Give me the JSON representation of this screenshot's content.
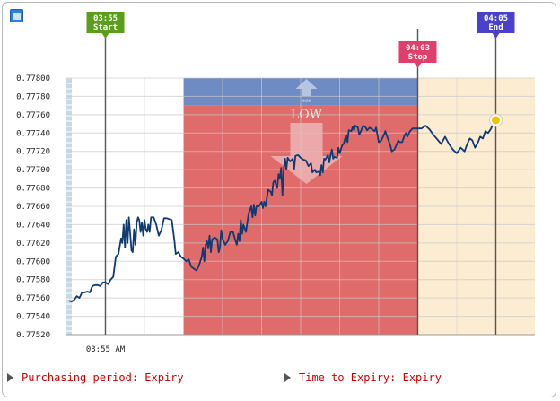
{
  "chart_data": {
    "type": "line",
    "title": "",
    "xlabel": "",
    "ylabel": "",
    "ylim": [
      0.7752,
      0.778
    ],
    "y_ticks": [
      "0.77800",
      "0.77780",
      "0.77760",
      "0.77740",
      "0.77720",
      "0.77700",
      "0.77680",
      "0.77660",
      "0.77640",
      "0.77620",
      "0.77600",
      "0.77580",
      "0.77560",
      "0.77540",
      "0.77520"
    ],
    "y_tick_values": [
      0.778,
      0.7778,
      0.7776,
      0.7774,
      0.7772,
      0.777,
      0.7768,
      0.7766,
      0.7764,
      0.7762,
      0.776,
      0.7758,
      0.7756,
      0.7754,
      0.7752
    ],
    "x_range_seconds": [
      0,
      720
    ],
    "x_tick_label": "03:55 AM",
    "x_tick_seconds": 60,
    "markers": [
      {
        "time": "03:55",
        "label": "Start",
        "seconds": 60,
        "color": "#5a9e1b"
      },
      {
        "time": "04:03",
        "label": "Stop",
        "seconds": 540,
        "color": "#e03f6b"
      },
      {
        "time": "04:05",
        "label": "End",
        "seconds": 660,
        "color": "#4a40cc"
      }
    ],
    "overlay": {
      "low_label": "LOW",
      "high_label": "HIGH",
      "start_seconds": 180,
      "stop_seconds": 540,
      "level": 0.7777
    },
    "series": [
      {
        "points": [
          [
            4,
            0.77557
          ],
          [
            8,
            0.77556
          ],
          [
            12,
            0.77558
          ],
          [
            16,
            0.77562
          ],
          [
            20,
            0.7756
          ],
          [
            24,
            0.77566
          ],
          [
            28,
            0.77566
          ],
          [
            32,
            0.77567
          ],
          [
            36,
            0.77566
          ],
          [
            40,
            0.77573
          ],
          [
            44,
            0.77574
          ],
          [
            48,
            0.77574
          ],
          [
            52,
            0.77573
          ],
          [
            56,
            0.77577
          ],
          [
            60,
            0.77577
          ],
          [
            64,
            0.77575
          ],
          [
            68,
            0.7758
          ],
          [
            72,
            0.77583
          ],
          [
            76,
            0.77605
          ],
          [
            80,
            0.77608
          ],
          [
            84,
            0.77625
          ],
          [
            86,
            0.7762
          ],
          [
            88,
            0.7764
          ],
          [
            90,
            0.77615
          ],
          [
            92,
            0.77645
          ],
          [
            94,
            0.7762
          ],
          [
            96,
            0.77648
          ],
          [
            98,
            0.7763
          ],
          [
            100,
            0.77612
          ],
          [
            102,
            0.7761
          ],
          [
            104,
            0.77635
          ],
          [
            106,
            0.77618
          ],
          [
            108,
            0.77642
          ],
          [
            110,
            0.77648
          ],
          [
            112,
            0.77645
          ],
          [
            114,
            0.77632
          ],
          [
            116,
            0.77642
          ],
          [
            118,
            0.77628
          ],
          [
            120,
            0.77645
          ],
          [
            122,
            0.77635
          ],
          [
            124,
            0.77632
          ],
          [
            126,
            0.7764
          ],
          [
            128,
            0.77632
          ],
          [
            130,
            0.77648
          ],
          [
            134,
            0.77648
          ],
          [
            138,
            0.7764
          ],
          [
            142,
            0.77628
          ],
          [
            146,
            0.77634
          ],
          [
            150,
            0.77647
          ],
          [
            154,
            0.77647
          ],
          [
            158,
            0.77646
          ],
          [
            162,
            0.77645
          ],
          [
            166,
            0.77622
          ],
          [
            168,
            0.77608
          ],
          [
            172,
            0.7761
          ],
          [
            176,
            0.77605
          ],
          [
            180,
            0.77603
          ],
          [
            184,
            0.776
          ],
          [
            188,
            0.77602
          ],
          [
            192,
            0.77594
          ],
          [
            196,
            0.77592
          ],
          [
            200,
            0.7759
          ],
          [
            204,
            0.77596
          ],
          [
            208,
            0.77605
          ],
          [
            210,
            0.77615
          ],
          [
            212,
            0.776
          ],
          [
            214,
            0.77618
          ],
          [
            216,
            0.77622
          ],
          [
            218,
            0.77614
          ],
          [
            220,
            0.77628
          ],
          [
            222,
            0.7761
          ],
          [
            224,
            0.77624
          ],
          [
            228,
            0.77626
          ],
          [
            232,
            0.77624
          ],
          [
            234,
            0.7761
          ],
          [
            236,
            0.77615
          ],
          [
            238,
            0.77634
          ],
          [
            240,
            0.77625
          ],
          [
            244,
            0.77618
          ],
          [
            248,
            0.77622
          ],
          [
            252,
            0.77632
          ],
          [
            256,
            0.77632
          ],
          [
            260,
            0.77622
          ],
          [
            262,
            0.77618
          ],
          [
            264,
            0.7763
          ],
          [
            266,
            0.77622
          ],
          [
            268,
            0.77645
          ],
          [
            270,
            0.7763
          ],
          [
            272,
            0.7764
          ],
          [
            276,
            0.77632
          ],
          [
            280,
            0.77652
          ],
          [
            284,
            0.7766
          ],
          [
            286,
            0.77648
          ],
          [
            288,
            0.77662
          ],
          [
            290,
            0.7765
          ],
          [
            292,
            0.7766
          ],
          [
            296,
            0.7766
          ],
          [
            300,
            0.77665
          ],
          [
            302,
            0.77658
          ],
          [
            304,
            0.77665
          ],
          [
            306,
            0.7766
          ],
          [
            310,
            0.77678
          ],
          [
            314,
            0.77676
          ],
          [
            316,
            0.77672
          ],
          [
            318,
            0.77686
          ],
          [
            320,
            0.77688
          ],
          [
            322,
            0.77684
          ],
          [
            324,
            0.7768
          ],
          [
            326,
            0.77695
          ],
          [
            328,
            0.7769
          ],
          [
            330,
            0.77702
          ],
          [
            332,
            0.77672
          ],
          [
            334,
            0.777
          ],
          [
            336,
            0.77712
          ],
          [
            338,
            0.777
          ],
          [
            340,
            0.77713
          ],
          [
            344,
            0.77709
          ],
          [
            348,
            0.77712
          ],
          [
            350,
            0.77701
          ],
          [
            352,
            0.77715
          ],
          [
            356,
            0.77716
          ],
          [
            360,
            0.77713
          ],
          [
            364,
            0.77711
          ],
          [
            368,
            0.7771
          ],
          [
            372,
            0.77704
          ],
          [
            376,
            0.77707
          ],
          [
            378,
            0.77697
          ],
          [
            382,
            0.777
          ],
          [
            384,
            0.77697
          ],
          [
            388,
            0.77698
          ],
          [
            390,
            0.77694
          ],
          [
            392,
            0.77705
          ],
          [
            394,
            0.77697
          ],
          [
            396,
            0.77712
          ],
          [
            398,
            0.77711
          ],
          [
            402,
            0.77716
          ],
          [
            404,
            0.77708
          ],
          [
            406,
            0.77716
          ],
          [
            408,
            0.77722
          ],
          [
            410,
            0.77712
          ],
          [
            412,
            0.77714
          ],
          [
            416,
            0.77713
          ],
          [
            418,
            0.77724
          ],
          [
            420,
            0.77718
          ],
          [
            424,
            0.77727
          ],
          [
            426,
            0.77728
          ],
          [
            430,
            0.77738
          ],
          [
            432,
            0.7773
          ],
          [
            434,
            0.77743
          ],
          [
            438,
            0.77742
          ],
          [
            440,
            0.77747
          ],
          [
            442,
            0.77743
          ],
          [
            444,
            0.77748
          ],
          [
            448,
            0.77746
          ],
          [
            450,
            0.77738
          ],
          [
            452,
            0.77741
          ],
          [
            456,
            0.77748
          ],
          [
            460,
            0.77746
          ],
          [
            462,
            0.77743
          ],
          [
            466,
            0.77746
          ],
          [
            470,
            0.77744
          ],
          [
            474,
            0.77742
          ],
          [
            476,
            0.77746
          ],
          [
            478,
            0.77738
          ],
          [
            480,
            0.7773
          ],
          [
            484,
            0.77732
          ],
          [
            488,
            0.77738
          ],
          [
            490,
            0.77742
          ],
          [
            494,
            0.77734
          ],
          [
            498,
            0.77726
          ],
          [
            500,
            0.7772
          ],
          [
            504,
            0.77722
          ],
          [
            508,
            0.77728
          ],
          [
            510,
            0.77732
          ],
          [
            512,
            0.7773
          ],
          [
            516,
            0.7773
          ],
          [
            520,
            0.77738
          ],
          [
            522,
            0.7774
          ],
          [
            524,
            0.77736
          ],
          [
            528,
            0.77742
          ],
          [
            532,
            0.77745
          ],
          [
            536,
            0.77745
          ],
          [
            540,
            0.77745
          ],
          [
            546,
            0.77745
          ],
          [
            552,
            0.77748
          ],
          [
            558,
            0.77744
          ],
          [
            564,
            0.77738
          ],
          [
            570,
            0.77733
          ],
          [
            576,
            0.77728
          ],
          [
            582,
            0.77736
          ],
          [
            588,
            0.77728
          ],
          [
            594,
            0.77722
          ],
          [
            600,
            0.77718
          ],
          [
            606,
            0.77724
          ],
          [
            612,
            0.7772
          ],
          [
            616,
            0.77728
          ],
          [
            620,
            0.77734
          ],
          [
            624,
            0.77732
          ],
          [
            628,
            0.77724
          ],
          [
            632,
            0.77729
          ],
          [
            636,
            0.77736
          ],
          [
            640,
            0.77734
          ],
          [
            644,
            0.77742
          ],
          [
            648,
            0.7774
          ],
          [
            652,
            0.77744
          ],
          [
            656,
            0.7775
          ],
          [
            660,
            0.77754
          ]
        ]
      }
    ],
    "current_point": [
      660,
      0.77754
    ]
  },
  "footer": {
    "purchasing_label": "Purchasing period: Expiry",
    "expiry_label": "Time to Expiry: Expiry"
  },
  "colors": {
    "line": "#0f3a73",
    "low_zone": "#e06b6b",
    "high_zone": "#6f8bc3",
    "post_stop_zone": "#fcedd2",
    "footer_text": "#d10000"
  }
}
